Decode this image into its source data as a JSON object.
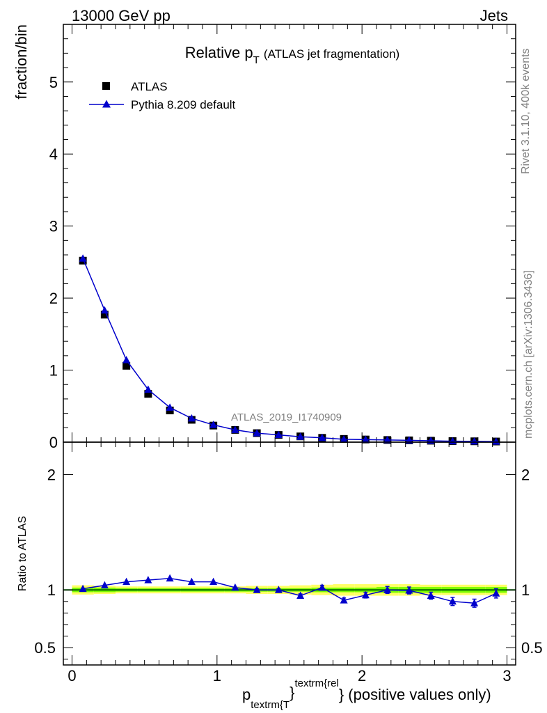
{
  "header": {
    "left": "13000 GeV pp",
    "right": "Jets"
  },
  "side_labels": {
    "rivet": "Rivet 3.1.10,  400k events",
    "mcplots": "mcplots.cern.ch [arXiv:1306.3436]"
  },
  "colors": {
    "data": "#000000",
    "mc": "#0000cc",
    "band_inner": "#7cfc00",
    "band_outer": "#ffff66",
    "ratio_line": "#006400"
  },
  "chart_data": [
    {
      "type": "scatter",
      "title_main": "Relative p",
      "title_sub": "T",
      "title_rest": "(ATLAS jet fragmentation)",
      "ylabel": "fraction/bin",
      "watermark": "ATLAS_2019_I1740909",
      "ylim": [
        0,
        5.8
      ],
      "yticks": [
        0,
        1,
        2,
        3,
        4,
        5
      ],
      "legend": {
        "placement": "top-left",
        "entries": [
          "ATLAS",
          "Pythia 8.209 default"
        ]
      },
      "x": [
        0.075,
        0.225,
        0.375,
        0.525,
        0.675,
        0.825,
        0.975,
        1.125,
        1.275,
        1.425,
        1.575,
        1.725,
        1.875,
        2.025,
        2.175,
        2.325,
        2.475,
        2.625,
        2.775,
        2.925
      ],
      "series": [
        {
          "name": "ATLAS",
          "values": [
            2.52,
            1.77,
            1.06,
            0.67,
            0.44,
            0.31,
            0.23,
            0.17,
            0.125,
            0.1,
            0.08,
            0.06,
            0.045,
            0.037,
            0.03,
            0.025,
            0.02,
            0.015,
            0.012,
            0.009
          ]
        },
        {
          "name": "Pythia 8.209 default",
          "values": [
            2.55,
            1.83,
            1.14,
            0.73,
            0.48,
            0.33,
            0.24,
            0.17,
            0.125,
            0.1,
            0.075,
            0.06,
            0.04,
            0.035,
            0.03,
            0.025,
            0.019,
            0.013,
            0.011,
            0.009
          ]
        }
      ]
    },
    {
      "type": "line",
      "ylabel": "Ratio to ATLAS",
      "xlabel_main": "p",
      "xlabel_sub": "textrm{T",
      "xlabel_sup": "textrm{rel",
      "xlabel_brace1": "}",
      "xlabel_brace2": "}",
      "xlabel_rest": "(positive values only)",
      "xlim": [
        -0.06,
        3.06
      ],
      "xticks": [
        0,
        1,
        2,
        3
      ],
      "ylim": [
        0.35,
        2.28
      ],
      "yticks": [
        0.5,
        1,
        2
      ],
      "ytick_labels": [
        "0.5",
        "1",
        "2"
      ],
      "x": [
        0.075,
        0.225,
        0.375,
        0.525,
        0.675,
        0.825,
        0.975,
        1.125,
        1.275,
        1.425,
        1.575,
        1.725,
        1.875,
        2.025,
        2.175,
        2.325,
        2.475,
        2.625,
        2.775,
        2.925
      ],
      "values": [
        1.01,
        1.04,
        1.07,
        1.085,
        1.1,
        1.07,
        1.07,
        1.02,
        1.0,
        1.0,
        0.95,
        1.02,
        0.91,
        0.955,
        1.0,
        0.995,
        0.95,
        0.9,
        0.885,
        0.97
      ],
      "errors": [
        0.005,
        0.005,
        0.005,
        0.005,
        0.005,
        0.005,
        0.005,
        0.005,
        0.01,
        0.01,
        0.015,
        0.02,
        0.02,
        0.025,
        0.03,
        0.03,
        0.03,
        0.035,
        0.035,
        0.04
      ],
      "band_inner": [
        0.02,
        0.02,
        0.015,
        0.015,
        0.015,
        0.015,
        0.015,
        0.015,
        0.015,
        0.015,
        0.015,
        0.02,
        0.02,
        0.02,
        0.025,
        0.025,
        0.025,
        0.025,
        0.025,
        0.025
      ],
      "band_outer": [
        0.04,
        0.035,
        0.03,
        0.03,
        0.03,
        0.03,
        0.03,
        0.03,
        0.035,
        0.035,
        0.04,
        0.045,
        0.05,
        0.05,
        0.05,
        0.05,
        0.045,
        0.045,
        0.045,
        0.045
      ]
    }
  ]
}
